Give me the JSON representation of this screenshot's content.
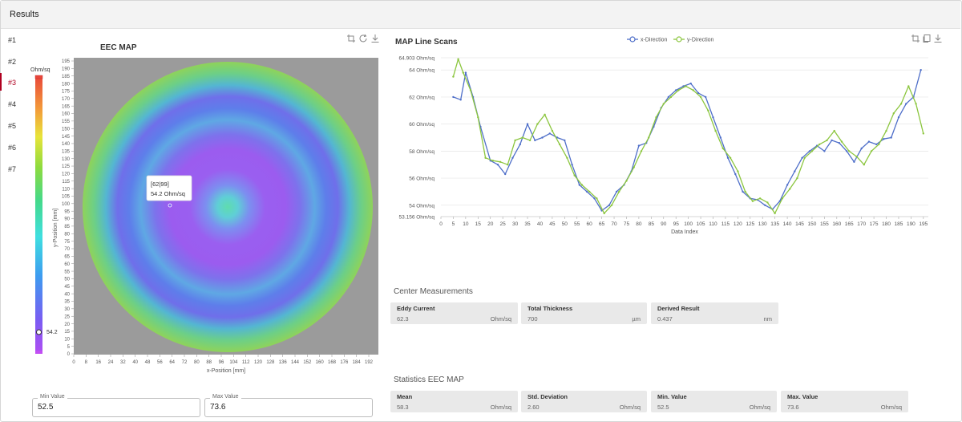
{
  "header": {
    "title": "Results"
  },
  "nav": [
    {
      "label": "#1"
    },
    {
      "label": "#2"
    },
    {
      "label": "#3",
      "active": true
    },
    {
      "label": "#4"
    },
    {
      "label": "#5"
    },
    {
      "label": "#6"
    },
    {
      "label": "#7"
    }
  ],
  "eec_map": {
    "title": "EEC MAP",
    "colorbar_unit": "Ohm/sq",
    "colorbar_marker_value": "54.2",
    "y_axis_label": "y-Position [mm]",
    "x_axis_label": "x-Position [mm]",
    "x_ticks": [
      "0",
      "8",
      "16",
      "24",
      "32",
      "40",
      "48",
      "56",
      "64",
      "72",
      "80",
      "88",
      "96",
      "104",
      "112",
      "120",
      "128",
      "136",
      "144",
      "152",
      "160",
      "168",
      "176",
      "184",
      "192"
    ],
    "y_ticks": [
      "0",
      "5",
      "10",
      "15",
      "20",
      "25",
      "30",
      "35",
      "40",
      "45",
      "50",
      "55",
      "60",
      "65",
      "70",
      "75",
      "80",
      "85",
      "90",
      "95",
      "100",
      "105",
      "110",
      "115",
      "120",
      "125",
      "130",
      "135",
      "140",
      "145",
      "150",
      "155",
      "160",
      "165",
      "170",
      "175",
      "180",
      "185",
      "190",
      "195"
    ],
    "tooltip": {
      "coord": "[62|99]",
      "value": "54.2 Ohm/sq"
    },
    "tools": [
      "crop-icon",
      "refresh-icon",
      "download-icon"
    ]
  },
  "line_scans": {
    "title": "MAP Line Scans",
    "tools": [
      "crop-icon",
      "copy-icon",
      "download-icon"
    ]
  },
  "chart_data": {
    "type": "line",
    "title": "MAP Line Scans",
    "xlabel": "Data Index",
    "ylabel": "",
    "xlim": [
      0,
      197
    ],
    "ylim": [
      53.156,
      64.903
    ],
    "x_ticks": [
      "0",
      "5",
      "10",
      "15",
      "20",
      "25",
      "30",
      "35",
      "40",
      "45",
      "50",
      "55",
      "60",
      "65",
      "70",
      "75",
      "80",
      "85",
      "90",
      "95",
      "100",
      "105",
      "110",
      "115",
      "120",
      "125",
      "130",
      "135",
      "140",
      "145",
      "150",
      "155",
      "160",
      "165",
      "170",
      "175",
      "180",
      "185",
      "190",
      "195"
    ],
    "y_ticks": [
      {
        "value": 64.903,
        "label": "64.903 Ohm/sq"
      },
      {
        "value": 64,
        "label": "64 Ohm/sq"
      },
      {
        "value": 62,
        "label": "62 Ohm/sq"
      },
      {
        "value": 60,
        "label": "60 Ohm/sq"
      },
      {
        "value": 58,
        "label": "58 Ohm/sq"
      },
      {
        "value": 56,
        "label": "56 Ohm/sq"
      },
      {
        "value": 54,
        "label": "54 Ohm/sq"
      },
      {
        "value": 53.156,
        "label": "53.156 Ohm/sq"
      }
    ],
    "legend_position": "top",
    "grid": true,
    "series": [
      {
        "name": "x-Direction",
        "color": "#4f6fc9",
        "x": [
          5,
          8,
          10,
          13,
          16,
          20,
          23,
          26,
          29,
          32,
          35,
          38,
          41,
          44,
          47,
          50,
          53,
          56,
          59,
          62,
          65,
          68,
          71,
          74,
          77,
          80,
          83,
          86,
          89,
          92,
          95,
          98,
          101,
          104,
          107,
          110,
          113,
          116,
          119,
          122,
          125,
          128,
          131,
          134,
          137,
          140,
          143,
          146,
          149,
          152,
          155,
          158,
          161,
          164,
          167,
          170,
          173,
          176,
          179,
          182,
          185,
          188,
          191,
          194
        ],
        "y": [
          62.0,
          61.8,
          63.8,
          62.0,
          59.8,
          57.3,
          57.0,
          56.3,
          57.5,
          58.5,
          60.0,
          58.8,
          59.0,
          59.3,
          59.0,
          58.8,
          57.0,
          55.5,
          55.0,
          54.5,
          53.6,
          54.0,
          55.0,
          55.5,
          56.5,
          58.4,
          58.6,
          59.8,
          61.2,
          62.0,
          62.5,
          62.8,
          63.0,
          62.3,
          62.0,
          60.5,
          59.0,
          57.5,
          56.3,
          55.0,
          54.5,
          54.4,
          54.0,
          53.7,
          54.3,
          55.5,
          56.5,
          57.5,
          58.0,
          58.4,
          58.0,
          58.8,
          58.6,
          58.0,
          57.2,
          58.2,
          58.7,
          58.5,
          58.9,
          59.0,
          60.5,
          61.5,
          62.0,
          64.0
        ]
      },
      {
        "name": "y-Direction",
        "color": "#8cc63f",
        "x": [
          5,
          7,
          9,
          12,
          15,
          18,
          21,
          24,
          27,
          30,
          33,
          36,
          39,
          42,
          45,
          48,
          51,
          54,
          57,
          60,
          63,
          66,
          69,
          72,
          75,
          78,
          81,
          84,
          87,
          90,
          93,
          96,
          99,
          102,
          105,
          108,
          111,
          114,
          117,
          120,
          123,
          126,
          129,
          132,
          135,
          138,
          141,
          144,
          147,
          150,
          153,
          156,
          159,
          162,
          165,
          168,
          171,
          174,
          177,
          180,
          183,
          186,
          189,
          192,
          195
        ],
        "y": [
          63.5,
          64.8,
          63.8,
          62.5,
          60.5,
          57.5,
          57.3,
          57.2,
          57.0,
          58.8,
          59.0,
          58.8,
          60.0,
          60.7,
          59.5,
          58.5,
          57.5,
          56.2,
          55.5,
          55.0,
          54.5,
          53.4,
          54.0,
          55.0,
          55.8,
          56.8,
          58.0,
          59.0,
          60.5,
          61.5,
          62.0,
          62.5,
          62.8,
          62.5,
          62.0,
          61.0,
          59.5,
          58.2,
          57.5,
          56.5,
          55.0,
          54.3,
          54.5,
          54.2,
          53.4,
          54.5,
          55.2,
          56.0,
          57.5,
          58.0,
          58.5,
          58.8,
          59.5,
          58.7,
          58.0,
          57.6,
          57.0,
          58.0,
          58.5,
          59.5,
          60.8,
          61.5,
          62.8,
          61.5,
          59.3
        ]
      }
    ]
  },
  "center_measurements": {
    "title": "Center Measurements",
    "cards": [
      {
        "label": "Eddy Current",
        "value": "62.3",
        "unit": "Ohm/sq"
      },
      {
        "label": "Total Thickness",
        "value": "700",
        "unit": "µm"
      },
      {
        "label": "Derived Result",
        "value": "0.437",
        "unit": "nm"
      }
    ]
  },
  "statistics": {
    "title": "Statistics EEC MAP",
    "cards": [
      {
        "label": "Mean",
        "value": "58.3",
        "unit": "Ohm/sq"
      },
      {
        "label": "Std. Deviation",
        "value": "2.60",
        "unit": "Ohm/sq"
      },
      {
        "label": "Min. Value",
        "value": "52.5",
        "unit": "Ohm/sq"
      },
      {
        "label": "Max. Value",
        "value": "73.6",
        "unit": "Ohm/sq"
      }
    ]
  },
  "range_inputs": {
    "min": {
      "label": "Min Value",
      "value": "52.5"
    },
    "max": {
      "label": "Max Value",
      "value": "73.6"
    }
  },
  "colors": {
    "accent": "#b00020",
    "map_background": "#9b9b9b",
    "x_series": "#4f6fc9",
    "y_series": "#8cc63f"
  }
}
